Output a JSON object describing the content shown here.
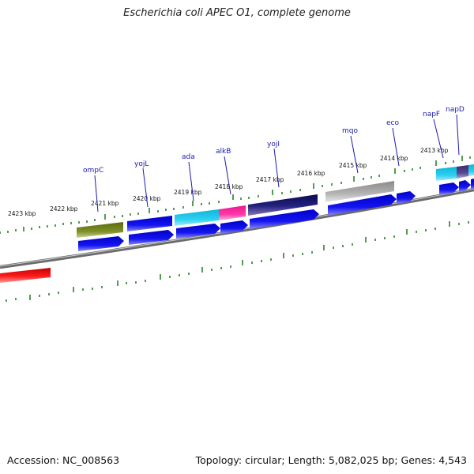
{
  "title": "Escherichia coli APEC O1, complete genome",
  "footer": {
    "accession": "Accession: NC_008563",
    "summary": "Topology: circular; Length: 5,082,025 bp; Genes: 4,543"
  },
  "kbp_labels": [
    "2423 kbp",
    "2422 kbp",
    "2421 kbp",
    "2420 kbp",
    "2419 kbp",
    "2418 kbp",
    "2417 kbp",
    "2416 kbp",
    "2415 kbp",
    "2414 kbp",
    "2413 kbp"
  ],
  "gene_labels": [
    "ompC",
    "yojL",
    "ada",
    "alkB",
    "yojI",
    "mqo",
    "eco",
    "napF",
    "napD"
  ],
  "colors": {
    "cds": "#1010e8",
    "backbone": "#777777",
    "ticks": "#1a7a1a",
    "rna": "#ee1111",
    "olive": "#6b7d1c",
    "cyan": "#22c8e8",
    "magenta": "#ff2aa0",
    "navy": "#141466",
    "purple": "#554488",
    "gray": "#a8a8a8",
    "label": "#1a1ab0"
  }
}
